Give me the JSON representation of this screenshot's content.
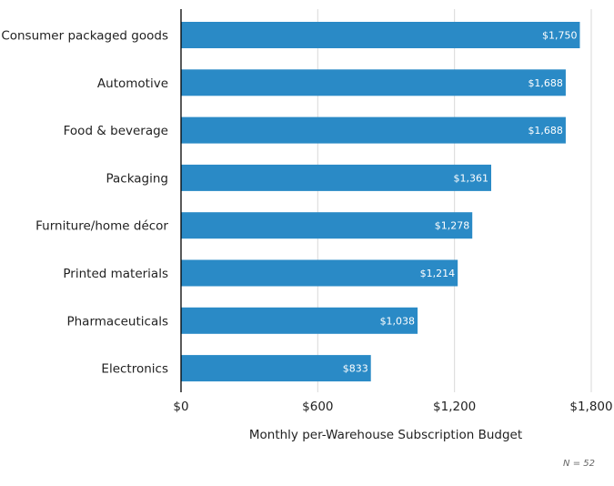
{
  "chart_data": {
    "type": "bar",
    "orientation": "horizontal",
    "categories": [
      "Consumer packaged goods",
      "Automotive",
      "Food & beverage",
      "Packaging",
      "Furniture/home décor",
      "Printed materials",
      "Pharmaceuticals",
      "Electronics"
    ],
    "values": [
      1750,
      1688,
      1688,
      1361,
      1278,
      1214,
      1038,
      833
    ],
    "value_labels": [
      "$1,750",
      "$1,688",
      "$1,688",
      "$1,361",
      "$1,278",
      "$1,214",
      "$1,038",
      "$833"
    ],
    "title": "",
    "xlabel": "Monthly per-Warehouse Subscription Budget",
    "ylabel": "",
    "xlim": [
      0,
      1800
    ],
    "xticks": [
      0,
      600,
      1200,
      1800
    ],
    "xtick_labels": [
      "$0",
      "$600",
      "$1,200",
      "$1,800"
    ],
    "grid": true,
    "legend": "none",
    "annotation": "N = 52",
    "bar_color": "#2a8ac6",
    "grid_color": "#d9d9d9",
    "axis_color": "#000000"
  }
}
